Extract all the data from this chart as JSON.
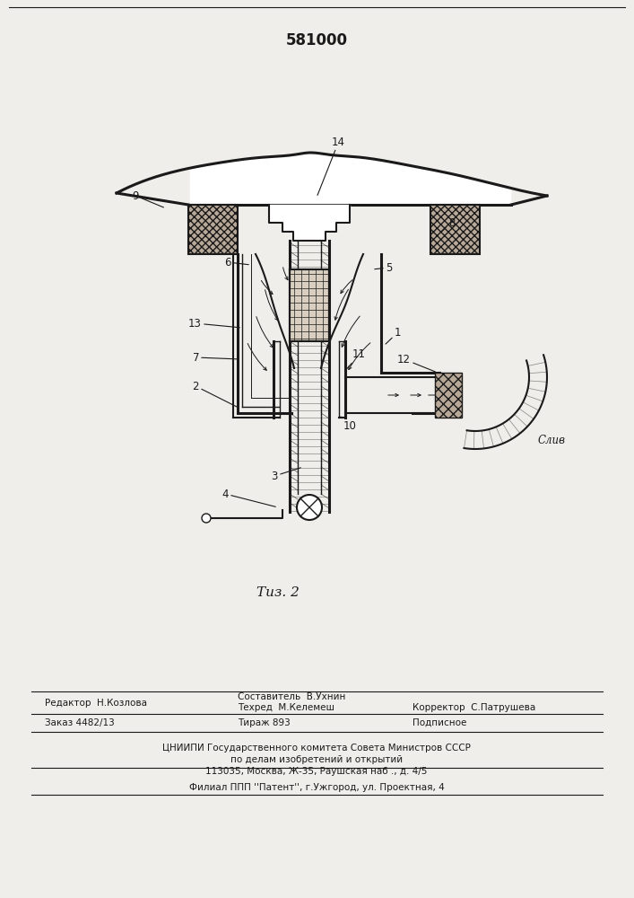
{
  "patent_number": "581000",
  "figure_label": "Τиз. 2",
  "bg_color": "#f0eeea",
  "line_color": "#1a1a1a",
  "footer_col1_line1": "Редактор  Н.Козлова",
  "footer_col2_line1": "Составитель  В.Ухнин",
  "footer_col2_line2": "Техред  М.Келемеш",
  "footer_col3_line2": "Корректор  С.Патрушева",
  "footer_order": "Заказ 4482/13",
  "footer_tirazh": "Тираж 893",
  "footer_podp": "Подписное",
  "footer_cniip1": "ЦНИИПИ Государственного комитета Совета Министров СССР",
  "footer_cniip2": "по делам изобретений и открытий",
  "footer_addr": "113035, Москва, Ж-35, Раушская наб ., д. 4/5",
  "footer_filial": "Филиал ППП ''Патент'', г.Ужгород, ул. Проектная, 4",
  "sliv_label": "Слив"
}
